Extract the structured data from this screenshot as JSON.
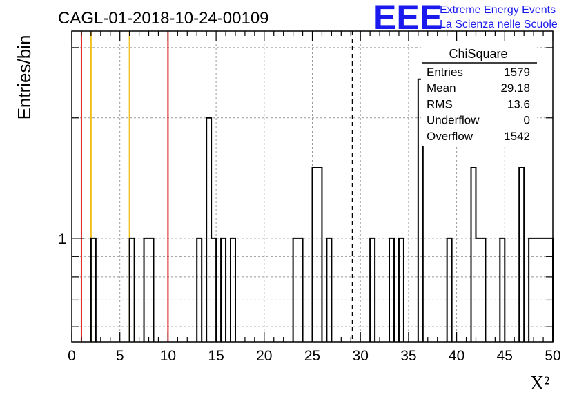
{
  "chart_data": {
    "type": "bar",
    "title": "CAGL-01-2018-10-24-00109",
    "xlabel": "X²",
    "ylabel": "Entries/bin",
    "y_scale": "log",
    "xlim": [
      0,
      50
    ],
    "ylim": [
      0.55,
      3.3
    ],
    "bin_width": 0.5,
    "grid": true,
    "bins": [
      {
        "x": 2.0,
        "value": 1
      },
      {
        "x": 6.0,
        "value": 1
      },
      {
        "x": 7.5,
        "value": 1
      },
      {
        "x": 8.0,
        "value": 1
      },
      {
        "x": 13.0,
        "value": 1
      },
      {
        "x": 14.0,
        "value": 2
      },
      {
        "x": 14.5,
        "value": 1
      },
      {
        "x": 15.5,
        "value": 1
      },
      {
        "x": 16.5,
        "value": 1
      },
      {
        "x": 23.0,
        "value": 1
      },
      {
        "x": 23.5,
        "value": 1
      },
      {
        "x": 25.0,
        "value": 1.5
      },
      {
        "x": 25.5,
        "value": 1.5
      },
      {
        "x": 26.5,
        "value": 1
      },
      {
        "x": 31.0,
        "value": 1
      },
      {
        "x": 33.0,
        "value": 1
      },
      {
        "x": 34.0,
        "value": 1
      },
      {
        "x": 36.0,
        "value": 2.5
      },
      {
        "x": 39.0,
        "value": 1
      },
      {
        "x": 41.5,
        "value": 1.5
      },
      {
        "x": 42.0,
        "value": 1
      },
      {
        "x": 42.5,
        "value": 1
      },
      {
        "x": 44.5,
        "value": 1
      },
      {
        "x": 46.5,
        "value": 1.5
      },
      {
        "x": 47.5,
        "value": 1
      },
      {
        "x": 48.0,
        "value": 1
      },
      {
        "x": 48.5,
        "value": 1
      },
      {
        "x": 49.0,
        "value": 1
      },
      {
        "x": 49.5,
        "value": 1
      }
    ],
    "x_ticks": [
      0,
      5,
      10,
      15,
      20,
      25,
      30,
      35,
      40,
      45,
      50
    ],
    "y_tick_labels": [
      {
        "value": 1,
        "label": "1"
      }
    ],
    "vertical_lines": [
      {
        "x": 1,
        "color": "#dd2222",
        "style": "solid"
      },
      {
        "x": 2,
        "color": "#f0c020",
        "style": "solid"
      },
      {
        "x": 6,
        "color": "#f0c020",
        "style": "solid"
      },
      {
        "x": 10,
        "color": "#dd2222",
        "style": "solid"
      },
      {
        "x": 29.18,
        "color": "#000000",
        "style": "dashed"
      }
    ],
    "stats_box": {
      "title": "ChiSquare",
      "rows": [
        {
          "label": "Entries",
          "value": "1579"
        },
        {
          "label": "Mean",
          "value": "29.18"
        },
        {
          "label": "RMS",
          "value": "13.6"
        },
        {
          "label": "Underflow",
          "value": "0"
        },
        {
          "label": "Overflow",
          "value": "1542"
        }
      ]
    }
  },
  "logo": {
    "text": "EEE",
    "line1": "Extreme Energy Events",
    "line2": "La Scienza nelle Scuole",
    "color": "#1a1aee"
  }
}
